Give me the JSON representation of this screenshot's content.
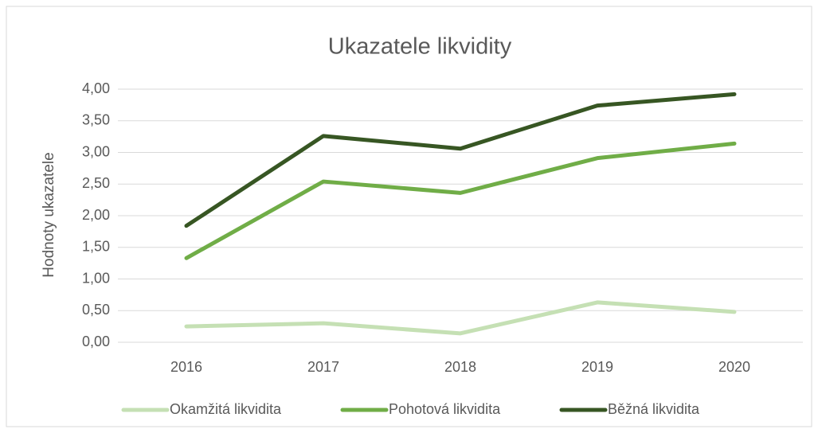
{
  "chart_data": {
    "type": "line",
    "title": "Ukazatele likvidity",
    "y_label": "Hodnoty ukazatele",
    "categories": [
      "2016",
      "2017",
      "2018",
      "2019",
      "2020"
    ],
    "series": [
      {
        "name": "Okamžitá likvidita",
        "color": "#c5e0b4",
        "values": [
          0.25,
          0.3,
          0.14,
          0.63,
          0.48
        ]
      },
      {
        "name": "Pohotová likvidita",
        "color": "#70ad47",
        "values": [
          1.33,
          2.54,
          2.36,
          2.91,
          3.14
        ]
      },
      {
        "name": "Běžná likvidita",
        "color": "#375623",
        "values": [
          1.84,
          3.26,
          3.06,
          3.74,
          3.92
        ]
      }
    ],
    "ylim": [
      0,
      4
    ],
    "yticks": [
      {
        "value": 0,
        "label": "0,00"
      },
      {
        "value": 0.5,
        "label": "0,50"
      },
      {
        "value": 1,
        "label": "1,00"
      },
      {
        "value": 1.5,
        "label": "1,50"
      },
      {
        "value": 2,
        "label": "2,00"
      },
      {
        "value": 2.5,
        "label": "2,50"
      },
      {
        "value": 3,
        "label": "3,00"
      },
      {
        "value": 3.5,
        "label": "3,50"
      },
      {
        "value": 4,
        "label": "4,00"
      }
    ],
    "grid": true,
    "legend": "bottom"
  }
}
